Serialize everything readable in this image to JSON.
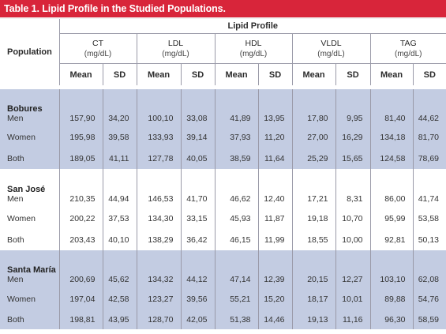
{
  "title": "Table 1. Lipid Profile in the Studied Populations.",
  "header": {
    "population": "Population",
    "group": "Lipid Profile",
    "params": [
      {
        "name": "CT",
        "unit": "(mg/dL)"
      },
      {
        "name": "LDL",
        "unit": "(mg/dL)"
      },
      {
        "name": "HDL",
        "unit": "(mg/dL)"
      },
      {
        "name": "VLDL",
        "unit": "(mg/dL)"
      },
      {
        "name": "TAG",
        "unit": "(mg/dL)"
      }
    ],
    "mean": "Mean",
    "sd": "SD"
  },
  "groups": [
    {
      "name": "Bobures",
      "rows": [
        {
          "label": "Men",
          "values": [
            "157,90",
            "34,20",
            "100,10",
            "33,08",
            "41,89",
            "13,95",
            "17,80",
            "9,95",
            "81,40",
            "44,62"
          ]
        },
        {
          "label": "Women",
          "values": [
            "195,98",
            "39,58",
            "133,93",
            "39,14",
            "37,93",
            "11,20",
            "27,00",
            "16,29",
            "134,18",
            "81,70"
          ]
        },
        {
          "label": "Both",
          "values": [
            "189,05",
            "41,11",
            "127,78",
            "40,05",
            "38,59",
            "11,64",
            "25,29",
            "15,65",
            "124,58",
            "78,69"
          ]
        }
      ]
    },
    {
      "name": "San José",
      "rows": [
        {
          "label": "Men",
          "values": [
            "210,35",
            "44,94",
            "146,53",
            "41,70",
            "46,62",
            "12,40",
            "17,21",
            "8,31",
            "86,00",
            "41,74"
          ]
        },
        {
          "label": "Women",
          "values": [
            "200,22",
            "37,53",
            "134,30",
            "33,15",
            "45,93",
            "11,87",
            "19,18",
            "10,70",
            "95,99",
            "53,58"
          ]
        },
        {
          "label": "Both",
          "values": [
            "203,43",
            "40,10",
            "138,29",
            "36,42",
            "46,15",
            "11,99",
            "18,55",
            "10,00",
            "92,81",
            "50,13"
          ]
        }
      ]
    },
    {
      "name": "Santa María",
      "rows": [
        {
          "label": "Men",
          "values": [
            "200,69",
            "45,62",
            "134,32",
            "44,12",
            "47,14",
            "12,39",
            "20,15",
            "12,27",
            "103,10",
            "62,08"
          ]
        },
        {
          "label": "Women",
          "values": [
            "197,04",
            "42,58",
            "123,27",
            "39,56",
            "55,21",
            "15,20",
            "18,17",
            "10,01",
            "89,88",
            "54,76"
          ]
        },
        {
          "label": "Both",
          "values": [
            "198,81",
            "43,95",
            "128,70",
            "42,05",
            "51,38",
            "14,46",
            "19,13",
            "11,16",
            "96,30",
            "58,59"
          ]
        }
      ]
    }
  ]
}
